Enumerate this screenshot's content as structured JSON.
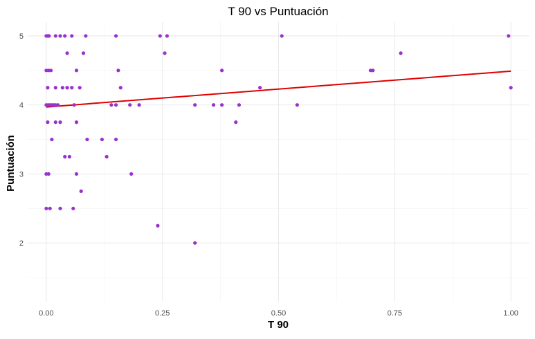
{
  "chart_data": {
    "type": "scatter",
    "title": "T 90 vs Puntuación",
    "xlabel": "T 90",
    "ylabel": "Puntuación",
    "xlim": [
      -0.04,
      1.04
    ],
    "ylim": [
      1.15,
      5.2
    ],
    "x_ticks": [
      0.0,
      0.25,
      0.5,
      0.75,
      1.0
    ],
    "x_tick_labels": [
      "0.00",
      "0.25",
      "0.50",
      "0.75",
      "1.00"
    ],
    "y_ticks": [
      2,
      3,
      4,
      5
    ],
    "y_tick_labels": [
      "2",
      "3",
      "4",
      "5"
    ],
    "x_minor_ticks": [
      0.125,
      0.375,
      0.625,
      0.875
    ],
    "y_minor_ticks": [
      1.5,
      2.5,
      3.5,
      4.5
    ],
    "grid": true,
    "legend": "none",
    "colors": {
      "points": "#9932CC",
      "trend": "#E00000"
    },
    "series": [
      {
        "values": [
          [
            0.0,
            5.0
          ],
          [
            0.003,
            5.0
          ],
          [
            0.006,
            5.0
          ],
          [
            0.02,
            5.0
          ],
          [
            0.03,
            5.0
          ],
          [
            0.04,
            5.0
          ],
          [
            0.055,
            5.0
          ],
          [
            0.085,
            5.0
          ],
          [
            0.15,
            5.0
          ],
          [
            0.245,
            5.0
          ],
          [
            0.26,
            5.0
          ],
          [
            0.507,
            5.0
          ],
          [
            0.995,
            5.0
          ],
          [
            0.045,
            4.75
          ],
          [
            0.08,
            4.75
          ],
          [
            0.255,
            4.75
          ],
          [
            0.763,
            4.75
          ],
          [
            0.0,
            4.5
          ],
          [
            0.005,
            4.5
          ],
          [
            0.01,
            4.5
          ],
          [
            0.065,
            4.5
          ],
          [
            0.155,
            4.5
          ],
          [
            0.378,
            4.5
          ],
          [
            0.698,
            4.5
          ],
          [
            0.703,
            4.5
          ],
          [
            0.003,
            4.25
          ],
          [
            0.02,
            4.25
          ],
          [
            0.035,
            4.25
          ],
          [
            0.045,
            4.25
          ],
          [
            0.055,
            4.25
          ],
          [
            0.072,
            4.25
          ],
          [
            0.16,
            4.25
          ],
          [
            0.46,
            4.25
          ],
          [
            1.0,
            4.25
          ],
          [
            0.0,
            4.0
          ],
          [
            0.004,
            4.0
          ],
          [
            0.008,
            4.0
          ],
          [
            0.012,
            4.0
          ],
          [
            0.016,
            4.0
          ],
          [
            0.02,
            4.0
          ],
          [
            0.025,
            4.0
          ],
          [
            0.06,
            4.0
          ],
          [
            0.14,
            4.0
          ],
          [
            0.15,
            4.0
          ],
          [
            0.18,
            4.0
          ],
          [
            0.2,
            4.0
          ],
          [
            0.32,
            4.0
          ],
          [
            0.36,
            4.0
          ],
          [
            0.378,
            4.0
          ],
          [
            0.415,
            4.0
          ],
          [
            0.54,
            4.0
          ],
          [
            0.003,
            3.75
          ],
          [
            0.02,
            3.75
          ],
          [
            0.03,
            3.75
          ],
          [
            0.065,
            3.75
          ],
          [
            0.408,
            3.75
          ],
          [
            0.012,
            3.5
          ],
          [
            0.088,
            3.5
          ],
          [
            0.12,
            3.5
          ],
          [
            0.15,
            3.5
          ],
          [
            0.04,
            3.25
          ],
          [
            0.05,
            3.25
          ],
          [
            0.13,
            3.25
          ],
          [
            0.0,
            3.0
          ],
          [
            0.005,
            3.0
          ],
          [
            0.065,
            3.0
          ],
          [
            0.183,
            3.0
          ],
          [
            0.075,
            2.75
          ],
          [
            0.0,
            2.5
          ],
          [
            0.008,
            2.5
          ],
          [
            0.03,
            2.5
          ],
          [
            0.058,
            2.5
          ],
          [
            0.24,
            2.25
          ],
          [
            0.32,
            2.0
          ]
        ]
      }
    ],
    "trend_line": {
      "type": "linear",
      "x": [
        0.0,
        1.0
      ],
      "y": [
        3.97,
        4.49
      ]
    }
  }
}
